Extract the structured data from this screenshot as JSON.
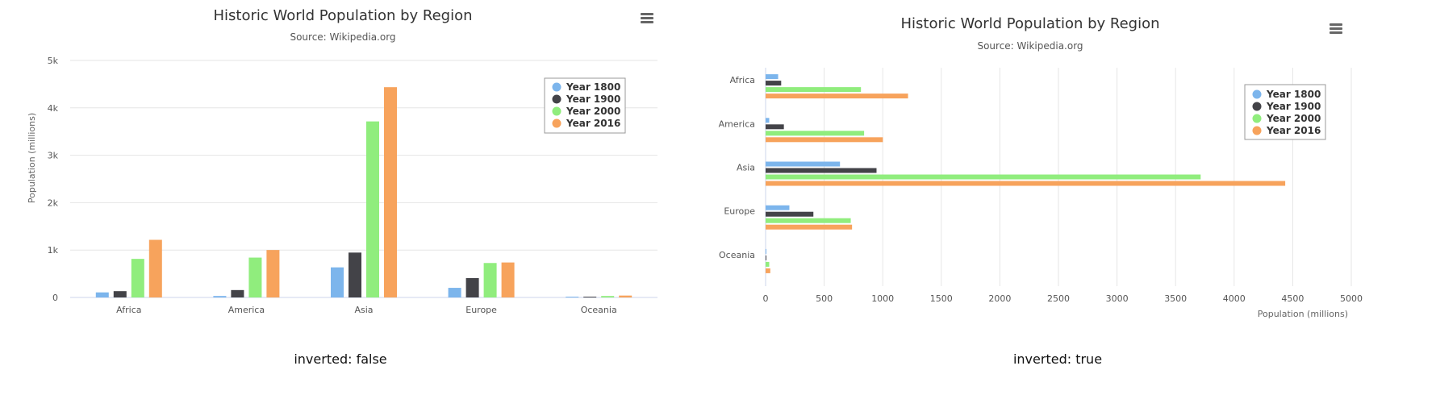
{
  "charts": [
    {
      "title": "Historic World Population by Region",
      "subtitle": "Source: Wikipedia.org",
      "caption": "inverted: false"
    },
    {
      "title": "Historic World Population by Region",
      "subtitle": "Source: Wikipedia.org",
      "caption": "inverted: true"
    }
  ],
  "chart_data": [
    {
      "type": "bar",
      "inverted": false,
      "title": "Historic World Population by Region",
      "subtitle": "Source: Wikipedia.org",
      "categories": [
        "Africa",
        "America",
        "Asia",
        "Europe",
        "Oceania"
      ],
      "series": [
        {
          "name": "Year 1800",
          "color": "#7cb5ec",
          "values": [
            107,
            31,
            635,
            203,
            2
          ]
        },
        {
          "name": "Year 1900",
          "color": "#434348",
          "values": [
            133,
            156,
            947,
            408,
            6
          ]
        },
        {
          "name": "Year 2000",
          "color": "#90ed7d",
          "values": [
            814,
            841,
            3714,
            727,
            31
          ]
        },
        {
          "name": "Year 2016",
          "color": "#f7a35c",
          "values": [
            1216,
            1001,
            4436,
            738,
            40
          ]
        }
      ],
      "xlabel": "",
      "ylabel": "Population (millions)",
      "ylim": [
        0,
        5000
      ],
      "yticks": [
        "0",
        "1k",
        "2k",
        "3k",
        "4k",
        "5k"
      ],
      "grid": true,
      "legend": "top-right"
    },
    {
      "type": "bar",
      "inverted": true,
      "title": "Historic World Population by Region",
      "subtitle": "Source: Wikipedia.org",
      "categories": [
        "Africa",
        "America",
        "Asia",
        "Europe",
        "Oceania"
      ],
      "series": [
        {
          "name": "Year 1800",
          "color": "#7cb5ec",
          "values": [
            107,
            31,
            635,
            203,
            2
          ]
        },
        {
          "name": "Year 1900",
          "color": "#434348",
          "values": [
            133,
            156,
            947,
            408,
            6
          ]
        },
        {
          "name": "Year 2000",
          "color": "#90ed7d",
          "values": [
            814,
            841,
            3714,
            727,
            31
          ]
        },
        {
          "name": "Year 2016",
          "color": "#f7a35c",
          "values": [
            1216,
            1001,
            4436,
            738,
            40
          ]
        }
      ],
      "xlabel": "Population (millions)",
      "ylabel": "",
      "xlim": [
        0,
        5000
      ],
      "xticks": [
        "0",
        "500",
        "1000",
        "1500",
        "2000",
        "2500",
        "3000",
        "3500",
        "4000",
        "4500",
        "5000"
      ],
      "grid": true,
      "legend": "top-right"
    }
  ]
}
